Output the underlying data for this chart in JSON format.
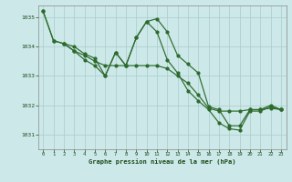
{
  "background_color": "#cce8e8",
  "grid_color": "#aacccc",
  "line_color": "#2d6a2d",
  "text_color": "#1a4a1a",
  "xlabel": "Graphe pression niveau de la mer (hPa)",
  "ylim": [
    1030.5,
    1035.4
  ],
  "xlim": [
    -0.5,
    23.5
  ],
  "yticks": [
    1031,
    1032,
    1033,
    1034,
    1035
  ],
  "xticks": [
    0,
    1,
    2,
    3,
    4,
    5,
    6,
    7,
    8,
    9,
    10,
    11,
    12,
    13,
    14,
    15,
    16,
    17,
    18,
    19,
    20,
    21,
    22,
    23
  ],
  "line1_x": [
    0,
    1,
    2,
    3,
    4,
    5,
    6,
    7,
    8,
    9,
    10,
    11,
    12,
    13,
    14,
    15,
    16,
    17,
    18,
    19,
    20,
    21,
    22,
    23
  ],
  "line1_y": [
    1035.2,
    1034.2,
    1034.1,
    1034.0,
    1033.75,
    1033.6,
    1033.0,
    1033.8,
    1033.35,
    1034.3,
    1034.85,
    1034.95,
    1034.5,
    1033.7,
    1033.4,
    1033.1,
    1031.95,
    1031.85,
    1031.3,
    1031.3,
    1031.85,
    1031.85,
    1032.0,
    1031.85
  ],
  "line2_x": [
    0,
    1,
    2,
    3,
    4,
    5,
    6,
    7,
    8,
    9,
    10,
    11,
    12,
    13,
    14,
    15,
    16,
    17,
    18,
    19,
    20,
    21,
    22,
    23
  ],
  "line2_y": [
    1035.2,
    1034.2,
    1034.1,
    1033.85,
    1033.7,
    1033.5,
    1033.35,
    1033.35,
    1033.35,
    1033.35,
    1033.35,
    1033.35,
    1033.25,
    1033.0,
    1032.75,
    1032.35,
    1031.9,
    1031.8,
    1031.8,
    1031.8,
    1031.85,
    1031.85,
    1031.9,
    1031.85
  ],
  "line3_x": [
    2,
    3,
    4,
    5,
    6,
    7,
    8,
    9,
    10,
    11,
    12,
    13,
    14,
    15,
    16,
    17,
    18,
    19,
    20,
    21,
    22,
    23
  ],
  "line3_y": [
    1034.1,
    1033.85,
    1033.55,
    1033.35,
    1033.0,
    1033.8,
    1033.35,
    1034.3,
    1034.85,
    1034.5,
    1033.55,
    1033.1,
    1032.5,
    1032.15,
    1031.85,
    1031.4,
    1031.2,
    1031.15,
    1031.8,
    1031.8,
    1031.95,
    1031.85
  ]
}
